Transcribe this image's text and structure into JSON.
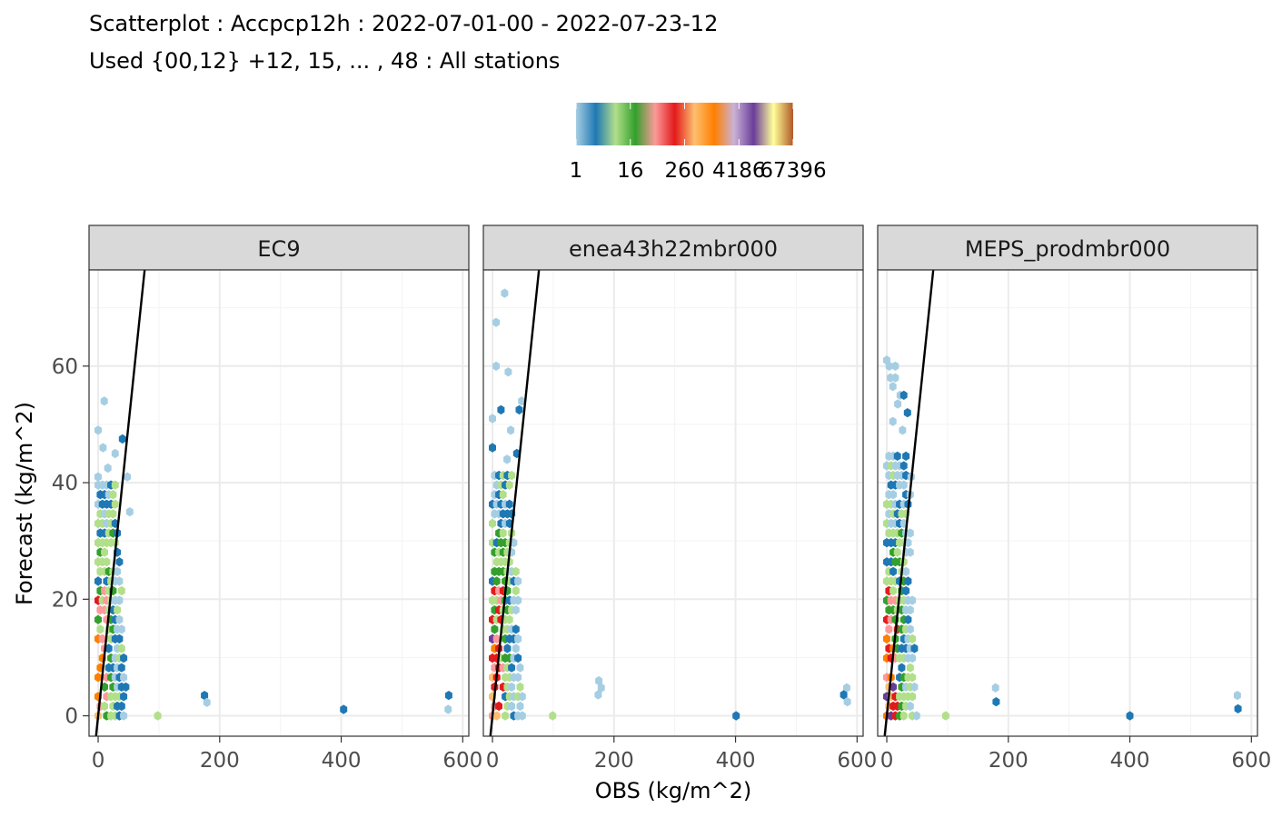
{
  "title": "Scatterplot : Accpcp12h : 2022-07-01-00 - 2022-07-23-12",
  "subtitle": "Used {00,12} +12, 15, ... , 48 : All stations",
  "chart_data": {
    "type": "scatter",
    "subtype": "hexbin",
    "xlabel": "OBS (kg/m^2)",
    "ylabel": "Forecast (kg/m^2)",
    "xlim": [
      -15,
      610
    ],
    "ylim": [
      -3.5,
      76.5
    ],
    "x_ticks": [
      0,
      200,
      400,
      600
    ],
    "x_tick_labels": [
      "0",
      "200",
      "400",
      "600"
    ],
    "y_ticks": [
      0,
      20,
      40,
      60
    ],
    "y_tick_labels": [
      "0",
      "20",
      "40",
      "60"
    ],
    "grid": true,
    "diagonal_line": {
      "slope": 1,
      "intercept": 0,
      "color": "#000000"
    },
    "legend": {
      "position": "top",
      "type": "colorbar",
      "labels": [
        "1",
        "16",
        "260",
        "4186",
        "67396"
      ],
      "label_fractions": [
        0.0,
        0.25,
        0.5,
        0.75,
        1.0
      ],
      "colors": [
        "#a6cee3",
        "#1f78b4",
        "#b2df8a",
        "#33a02c",
        "#fb9a99",
        "#e31a1c",
        "#fdbf6f",
        "#ff7f00",
        "#cab2d6",
        "#6a3d9a",
        "#ffff99",
        "#b15928"
      ]
    },
    "panels": [
      {
        "name": "EC9",
        "outliers": [
          {
            "x": 98,
            "y": 0,
            "color": "#b2df8a"
          },
          {
            "x": 175,
            "y": 3.5,
            "color": "#1f78b4"
          },
          {
            "x": 179,
            "y": 2.3,
            "color": "#a6cee3"
          },
          {
            "x": 404,
            "y": 1.1,
            "color": "#1f78b4"
          },
          {
            "x": 577,
            "y": 3.5,
            "color": "#1f78b4"
          },
          {
            "x": 576,
            "y": 1.1,
            "color": "#a6cee3"
          }
        ],
        "isolated": [
          {
            "x": 10,
            "y": 54,
            "color": "#a6cee3"
          },
          {
            "x": 0,
            "y": 49,
            "color": "#a6cee3"
          },
          {
            "x": 8,
            "y": 46,
            "color": "#a6cee3"
          },
          {
            "x": 28,
            "y": 45,
            "color": "#a6cee3"
          },
          {
            "x": 40,
            "y": 47.5,
            "color": "#1f78b4"
          },
          {
            "x": 16,
            "y": 42.5,
            "color": "#a6cee3"
          },
          {
            "x": 48,
            "y": 41,
            "color": "#a6cee3"
          },
          {
            "x": 0,
            "y": 41,
            "color": "#a6cee3"
          },
          {
            "x": 52,
            "y": 35,
            "color": "#a6cee3"
          }
        ],
        "cluster": {
          "x_max": 50,
          "y_max": 40,
          "density": 1.0
        }
      },
      {
        "name": "enea43h22mbr000",
        "outliers": [
          {
            "x": 99,
            "y": 0,
            "color": "#b2df8a"
          },
          {
            "x": 175,
            "y": 6,
            "color": "#a6cee3"
          },
          {
            "x": 179,
            "y": 4.8,
            "color": "#a6cee3"
          },
          {
            "x": 174,
            "y": 3.6,
            "color": "#a6cee3"
          },
          {
            "x": 401,
            "y": 0,
            "color": "#1f78b4"
          },
          {
            "x": 583,
            "y": 4.8,
            "color": "#a6cee3"
          },
          {
            "x": 578,
            "y": 3.6,
            "color": "#1f78b4"
          },
          {
            "x": 584,
            "y": 2.4,
            "color": "#a6cee3"
          }
        ],
        "isolated": [
          {
            "x": 20,
            "y": 72.5,
            "color": "#a6cee3"
          },
          {
            "x": 6,
            "y": 67.5,
            "color": "#a6cee3"
          },
          {
            "x": 6,
            "y": 60,
            "color": "#a6cee3"
          },
          {
            "x": 26,
            "y": 59,
            "color": "#a6cee3"
          },
          {
            "x": 48,
            "y": 54,
            "color": "#a6cee3"
          },
          {
            "x": 44,
            "y": 52.5,
            "color": "#1f78b4"
          },
          {
            "x": 14,
            "y": 52.5,
            "color": "#1f78b4"
          },
          {
            "x": 0,
            "y": 51,
            "color": "#a6cee3"
          },
          {
            "x": 30,
            "y": 49,
            "color": "#a6cee3"
          },
          {
            "x": 0,
            "y": 46,
            "color": "#1f78b4"
          },
          {
            "x": 40,
            "y": 45,
            "color": "#1f78b4"
          },
          {
            "x": 24,
            "y": 44,
            "color": "#a6cee3"
          }
        ],
        "cluster": {
          "x_max": 55,
          "y_max": 42,
          "density": 1.0
        }
      },
      {
        "name": "MEPS_prodmbr000",
        "outliers": [
          {
            "x": 97,
            "y": 0,
            "color": "#b2df8a"
          },
          {
            "x": 179,
            "y": 4.8,
            "color": "#a6cee3"
          },
          {
            "x": 180,
            "y": 2.4,
            "color": "#1f78b4"
          },
          {
            "x": 400,
            "y": 0,
            "color": "#1f78b4"
          },
          {
            "x": 577,
            "y": 3.5,
            "color": "#a6cee3"
          },
          {
            "x": 578,
            "y": 1.2,
            "color": "#1f78b4"
          }
        ],
        "isolated": [
          {
            "x": 0,
            "y": 61,
            "color": "#a6cee3"
          },
          {
            "x": 4,
            "y": 60,
            "color": "#a6cee3"
          },
          {
            "x": 14,
            "y": 60,
            "color": "#a6cee3"
          },
          {
            "x": 6,
            "y": 58,
            "color": "#a6cee3"
          },
          {
            "x": 14,
            "y": 58,
            "color": "#a6cee3"
          },
          {
            "x": 10,
            "y": 56.5,
            "color": "#a6cee3"
          },
          {
            "x": 22,
            "y": 55,
            "color": "#a6cee3"
          },
          {
            "x": 28,
            "y": 55,
            "color": "#1f78b4"
          },
          {
            "x": 18,
            "y": 53.5,
            "color": "#a6cee3"
          },
          {
            "x": 34,
            "y": 52,
            "color": "#1f78b4"
          },
          {
            "x": 10,
            "y": 50.5,
            "color": "#a6cee3"
          },
          {
            "x": 26,
            "y": 49,
            "color": "#a6cee3"
          },
          {
            "x": 40,
            "y": 41,
            "color": "#a6cee3"
          }
        ],
        "cluster": {
          "x_max": 55,
          "y_max": 46,
          "density": 1.0
        }
      }
    ]
  }
}
